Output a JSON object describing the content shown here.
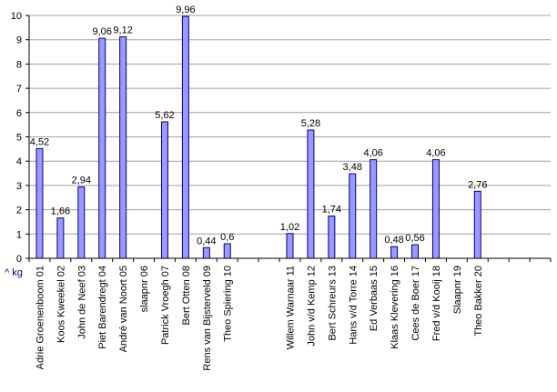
{
  "chart_data": {
    "type": "bar",
    "unit_label": "^ kg",
    "ylim": [
      0,
      10
    ],
    "yticks": [
      0,
      1,
      2,
      3,
      4,
      5,
      6,
      7,
      8,
      9,
      10
    ],
    "grid": "horizontal",
    "legend": "none",
    "categories": [
      "Adrie Groenenboom 01",
      "Koos Kweekel 02",
      "John de Neef 03",
      "Piet Barendregt 04",
      "André van Noort 05",
      "slaapnr 06",
      "Patrick Vroegh 07",
      "Bert Otten 08",
      "Rens van Bijsterveld 09",
      "Theo Spiering 10",
      "",
      "",
      "Willem Warnaar 11",
      "John v/d Kemp 12",
      "Bert Schreurs 13",
      "Hans v/d Torre 14",
      "Ed Verbaas 15",
      "Klaas Klevering 16",
      "Cees de Boer 17",
      "Fred v/d Kooij 18",
      "Slaapnr 19",
      "Theo Bakker 20",
      "",
      "",
      ""
    ],
    "values": [
      4.52,
      1.66,
      2.94,
      9.06,
      9.12,
      null,
      5.62,
      9.96,
      0.44,
      0.6,
      null,
      null,
      1.02,
      5.28,
      1.74,
      3.48,
      4.06,
      0.48,
      0.56,
      4.06,
      null,
      2.76,
      null,
      null,
      null
    ],
    "labels": [
      "4,52",
      "1,66",
      "2,94",
      "9,06",
      "9,12",
      "",
      "5,62",
      "9,96",
      "0,44",
      "0,6",
      "",
      "",
      "1,02",
      "5,28",
      "1,74",
      "3,48",
      "4,06",
      "0,48",
      "0,56",
      "4,06",
      "",
      "2,76",
      "",
      "",
      ""
    ],
    "colors": {
      "bar_fill": "#9999ff",
      "bar_stroke": "#000080",
      "plot_bg": "#ffffff",
      "outer_bg": "#ffffff",
      "grid": "#a0a0a0",
      "axis": "#000000",
      "unit_label": "#000080"
    }
  }
}
